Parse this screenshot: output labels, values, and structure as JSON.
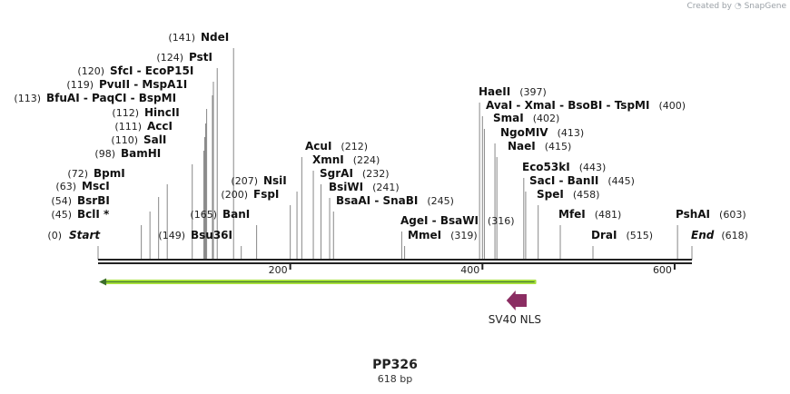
{
  "watermark": {
    "created_by": "Created by",
    "brand": "SnapGene"
  },
  "map": {
    "name": "PP326",
    "length_label": "618 bp",
    "length_bp": 618
  },
  "ruler": {
    "ticks": [
      {
        "bp": 200,
        "label": "200"
      },
      {
        "bp": 400,
        "label": "400"
      },
      {
        "bp": 600,
        "label": "600"
      }
    ]
  },
  "features": [
    {
      "name": "green-feature",
      "start": 1,
      "end": 456,
      "direction": "reverse",
      "color": "#a6e03c",
      "label": ""
    },
    {
      "name": "sv40-nls",
      "start": 425,
      "end": 446,
      "direction": "reverse",
      "color": "#8b2d62",
      "label": "SV40 NLS"
    }
  ],
  "sites": [
    {
      "pos": 0,
      "pos_label": "(0)",
      "name": "Start",
      "italic": true,
      "side": "left"
    },
    {
      "pos": 45,
      "pos_label": "(45)",
      "name": "BclI *",
      "side": "left"
    },
    {
      "pos": 54,
      "pos_label": "(54)",
      "name": "BsrBI",
      "side": "left"
    },
    {
      "pos": 63,
      "pos_label": "(63)",
      "name": "MscI",
      "side": "left"
    },
    {
      "pos": 72,
      "pos_label": "(72)",
      "name": "BpmI",
      "side": "left"
    },
    {
      "pos": 98,
      "pos_label": "(98)",
      "name": "BamHI",
      "side": "left"
    },
    {
      "pos": 110,
      "pos_label": "(110)",
      "name": "SalI",
      "side": "left"
    },
    {
      "pos": 111,
      "pos_label": "(111)",
      "name": "AccI",
      "side": "left"
    },
    {
      "pos": 112,
      "pos_label": "(112)",
      "name": "HincII",
      "side": "left"
    },
    {
      "pos": 113,
      "pos_label": "(113)",
      "name": "BfuAI  -  PaqCI  -  BspMI",
      "side": "left"
    },
    {
      "pos": 119,
      "pos_label": "(119)",
      "name": "PvuII  -  MspA1I",
      "side": "left"
    },
    {
      "pos": 120,
      "pos_label": "(120)",
      "name": "SfcI  -  EcoP15I",
      "side": "left"
    },
    {
      "pos": 124,
      "pos_label": "(124)",
      "name": "PstI",
      "side": "left"
    },
    {
      "pos": 141,
      "pos_label": "(141)",
      "name": "NdeI",
      "side": "left"
    },
    {
      "pos": 149,
      "pos_label": "(149)",
      "name": "Bsu36I",
      "side": "right"
    },
    {
      "pos": 165,
      "pos_label": "(165)",
      "name": "BanI",
      "side": "right"
    },
    {
      "pos": 200,
      "pos_label": "(200)",
      "name": "FspI",
      "side": "right"
    },
    {
      "pos": 207,
      "pos_label": "(207)",
      "name": "NsiI",
      "side": "right"
    },
    {
      "pos": 212,
      "pos_label": "(212)",
      "name": "AcuI",
      "side": "left"
    },
    {
      "pos": 224,
      "pos_label": "(224)",
      "name": "XmnI",
      "side": "left"
    },
    {
      "pos": 232,
      "pos_label": "(232)",
      "name": "SgrAI",
      "side": "left"
    },
    {
      "pos": 241,
      "pos_label": "(241)",
      "name": "BsiWI",
      "side": "left"
    },
    {
      "pos": 245,
      "pos_label": "(245)",
      "name": "BsaAI  -  SnaBI",
      "side": "left"
    },
    {
      "pos": 316,
      "pos_label": "(316)",
      "name": "AgeI  -  BsaWI",
      "side": "left"
    },
    {
      "pos": 319,
      "pos_label": "(319)",
      "name": "MmeI",
      "side": "left"
    },
    {
      "pos": 397,
      "pos_label": "(397)",
      "name": "HaeII",
      "side": "left"
    },
    {
      "pos": 400,
      "pos_label": "(400)",
      "name": "AvaI  -  XmaI  -  BsoBI  -  TspMI",
      "side": "left"
    },
    {
      "pos": 402,
      "pos_label": "(402)",
      "name": "SmaI",
      "side": "left"
    },
    {
      "pos": 413,
      "pos_label": "(413)",
      "name": "NgoMIV",
      "side": "left"
    },
    {
      "pos": 415,
      "pos_label": "(415)",
      "name": "NaeI",
      "side": "left"
    },
    {
      "pos": 443,
      "pos_label": "(443)",
      "name": "Eco53kI",
      "side": "left"
    },
    {
      "pos": 445,
      "pos_label": "(445)",
      "name": "SacI  -  BanII",
      "side": "left"
    },
    {
      "pos": 458,
      "pos_label": "(458)",
      "name": "SpeI",
      "side": "left"
    },
    {
      "pos": 481,
      "pos_label": "(481)",
      "name": "MfeI",
      "side": "left"
    },
    {
      "pos": 515,
      "pos_label": "(515)",
      "name": "DraI",
      "side": "left"
    },
    {
      "pos": 603,
      "pos_label": "(603)",
      "name": "PshAI",
      "side": "left"
    },
    {
      "pos": 618,
      "pos_label": "(618)",
      "name": "End",
      "italic": true,
      "side": "left"
    }
  ]
}
